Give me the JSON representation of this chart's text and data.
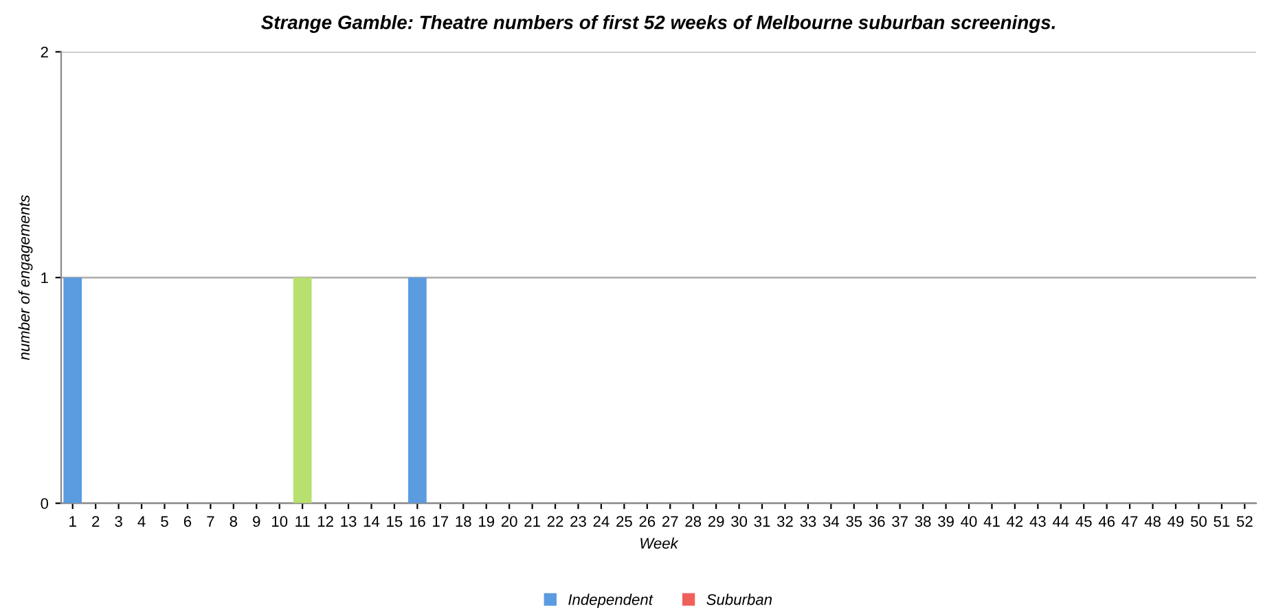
{
  "chart_data": {
    "type": "bar",
    "title": "Strange Gamble: Theatre numbers of first 52 weeks of Melbourne suburban screenings.",
    "xlabel": "Week",
    "ylabel": "number of engagements",
    "categories": [
      "1",
      "2",
      "3",
      "4",
      "5",
      "6",
      "7",
      "8",
      "9",
      "10",
      "11",
      "12",
      "13",
      "14",
      "15",
      "16",
      "17",
      "18",
      "19",
      "20",
      "21",
      "22",
      "23",
      "24",
      "25",
      "26",
      "27",
      "28",
      "29",
      "30",
      "31",
      "32",
      "33",
      "34",
      "35",
      "36",
      "37",
      "38",
      "39",
      "40",
      "41",
      "42",
      "43",
      "44",
      "45",
      "46",
      "47",
      "48",
      "49",
      "50",
      "51",
      "52"
    ],
    "stacked": true,
    "series": [
      {
        "name": "Independent",
        "color": "#5b9be0",
        "values": [
          1,
          0,
          0,
          0,
          0,
          0,
          0,
          0,
          0,
          0,
          0,
          0,
          0,
          0,
          0,
          1,
          0,
          0,
          0,
          0,
          0,
          0,
          0,
          0,
          0,
          0,
          0,
          0,
          0,
          0,
          0,
          0,
          0,
          0,
          0,
          0,
          0,
          0,
          0,
          0,
          0,
          0,
          0,
          0,
          0,
          0,
          0,
          0,
          0,
          0,
          0,
          0
        ]
      },
      {
        "name": "Suburban",
        "color": "#f0605a",
        "values": [
          0,
          0,
          0,
          0,
          0,
          0,
          0,
          0,
          0,
          0,
          0,
          0,
          0,
          0,
          0,
          0,
          0,
          0,
          0,
          0,
          0,
          0,
          0,
          0,
          0,
          0,
          0,
          0,
          0,
          0,
          0,
          0,
          0,
          0,
          0,
          0,
          0,
          0,
          0,
          0,
          0,
          0,
          0,
          0,
          0,
          0,
          0,
          0,
          0,
          0,
          0,
          0
        ]
      },
      {
        "color": "#b8e06e",
        "values": [
          0,
          0,
          0,
          0,
          0,
          0,
          0,
          0,
          0,
          0,
          1,
          0,
          0,
          0,
          0,
          0,
          0,
          0,
          0,
          0,
          0,
          0,
          0,
          0,
          0,
          0,
          0,
          0,
          0,
          0,
          0,
          0,
          0,
          0,
          0,
          0,
          0,
          0,
          0,
          0,
          0,
          0,
          0,
          0,
          0,
          0,
          0,
          0,
          0,
          0,
          0,
          0
        ]
      }
    ],
    "ylim": [
      0,
      2
    ],
    "yticks": [
      0,
      1,
      2
    ],
    "grid": "y",
    "legend": "bottom"
  }
}
